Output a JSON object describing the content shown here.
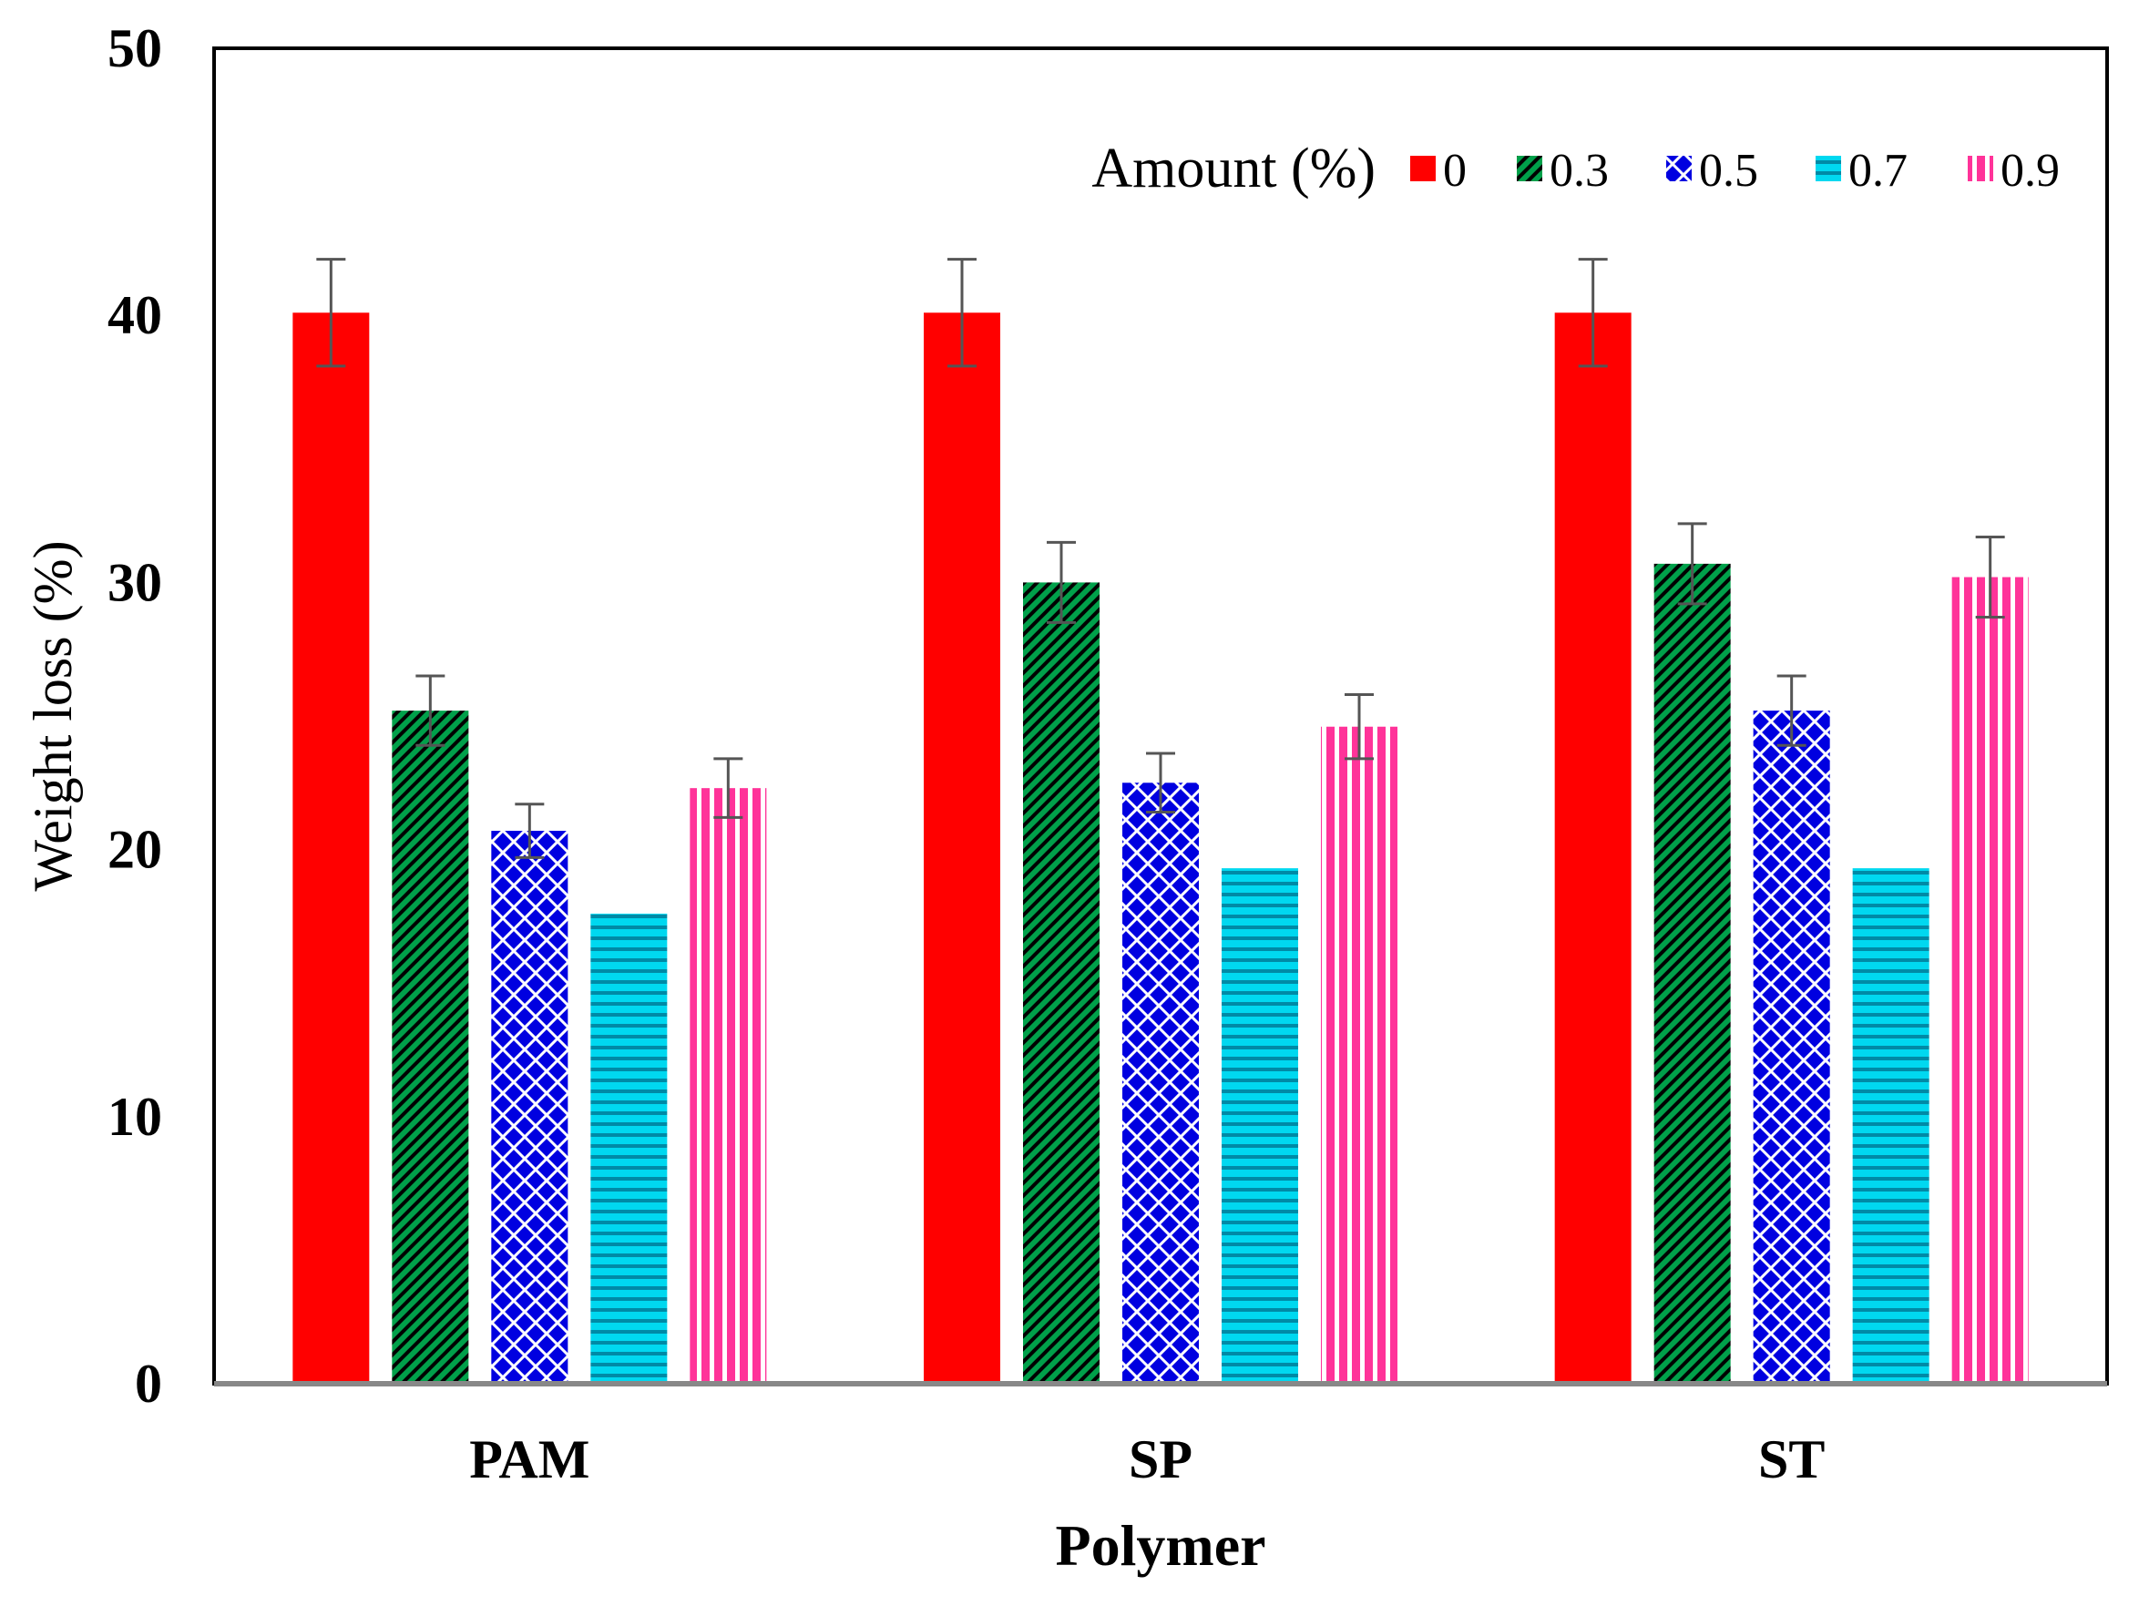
{
  "chart_data": {
    "type": "bar",
    "title": "",
    "xlabel": "Polymer",
    "ylabel": "Weight loss (%)",
    "ylim": [
      0,
      50
    ],
    "yticks": [
      0,
      10,
      20,
      30,
      40,
      50
    ],
    "categories": [
      "PAM",
      "SP",
      "ST"
    ],
    "legend": {
      "title": "Amount (%)",
      "placement": "top-right"
    },
    "series": [
      {
        "name": "0",
        "color": "#ff0000",
        "pattern": "solid",
        "values": [
          40.1,
          40.1,
          40.1
        ],
        "errors": [
          2.0,
          2.0,
          2.0
        ]
      },
      {
        "name": "0.3",
        "color": "#00a04a",
        "pattern": "diagonal-hatch",
        "values": [
          25.2,
          30.0,
          30.7
        ],
        "errors": [
          1.3,
          1.5,
          1.5
        ]
      },
      {
        "name": "0.5",
        "color": "#0000e0",
        "pattern": "lattice",
        "values": [
          20.7,
          22.5,
          25.2
        ],
        "errors": [
          1.0,
          1.1,
          1.3
        ]
      },
      {
        "name": "0.7",
        "color": "#00d8f0",
        "pattern": "horizontal-lines",
        "values": [
          17.6,
          19.3,
          19.3
        ],
        "errors": [
          0,
          0,
          0
        ]
      },
      {
        "name": "0.9",
        "color": "#ff3399",
        "pattern": "vertical-lines",
        "values": [
          22.3,
          24.6,
          30.2
        ],
        "errors": [
          1.1,
          1.2,
          1.5
        ]
      }
    ]
  }
}
